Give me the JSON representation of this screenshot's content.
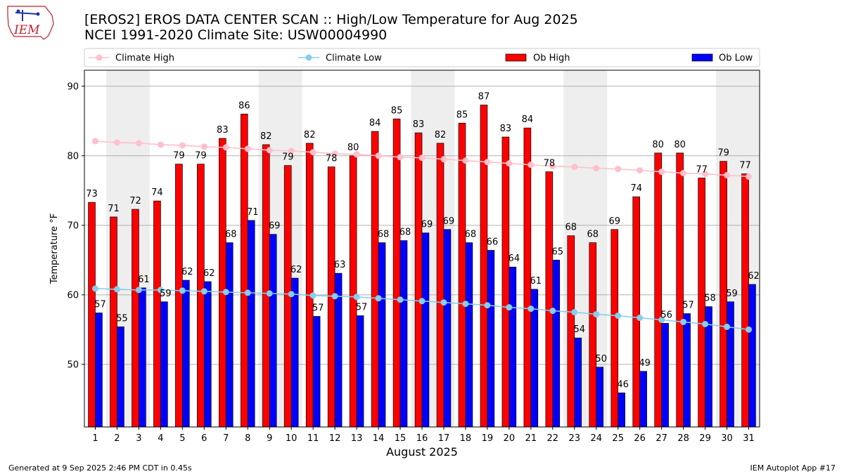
{
  "header": {
    "title_line1": "[EROS2] EROS DATA CENTER SCAN :: High/Low Temperature for Aug 2025",
    "title_line2": "NCEI 1991-2020 Climate Site: USW00004990"
  },
  "logo": {
    "text": "IEM"
  },
  "footer": {
    "left": "Generated at 9 Sep 2025 2:46 PM CDT in 0.45s",
    "right": "IEM Autoplot App #17"
  },
  "chart_data": {
    "type": "bar",
    "xlabel": "August 2025",
    "ylabel": "Temperature °F",
    "ylim": [
      41,
      92.3
    ],
    "yticks": [
      50,
      60,
      70,
      80,
      90
    ],
    "grid": true,
    "legend_position": "top",
    "categories": [
      "1",
      "2",
      "3",
      "4",
      "5",
      "6",
      "7",
      "8",
      "9",
      "10",
      "11",
      "12",
      "13",
      "14",
      "15",
      "16",
      "17",
      "18",
      "19",
      "20",
      "21",
      "22",
      "23",
      "24",
      "25",
      "26",
      "27",
      "28",
      "29",
      "30",
      "31"
    ],
    "weekend_shading_days": [
      2,
      3,
      9,
      10,
      16,
      17,
      23,
      24,
      30,
      31
    ],
    "series": [
      {
        "name": "Ob High",
        "kind": "bar",
        "color": "#ff0000",
        "values": [
          73.3,
          71.2,
          72.3,
          73.5,
          78.8,
          78.8,
          82.5,
          86.0,
          81.6,
          78.6,
          81.8,
          78.4,
          80.0,
          83.5,
          85.3,
          83.3,
          81.8,
          84.7,
          87.3,
          82.7,
          84.0,
          77.7,
          68.5,
          67.5,
          69.4,
          74.1,
          80.4,
          80.4,
          76.8,
          79.2,
          77.4
        ],
        "labels": [
          "73",
          "71",
          "72",
          "74",
          "79",
          "79",
          "83",
          "86",
          "82",
          "79",
          "82",
          "78",
          "80",
          "84",
          "85",
          "83",
          "82",
          "85",
          "87",
          "83",
          "84",
          "78",
          "68",
          "68",
          "69",
          "74",
          "80",
          "80",
          "77",
          "79",
          "77"
        ]
      },
      {
        "name": "Ob Low",
        "kind": "bar",
        "color": "#0000ff",
        "values": [
          57.4,
          55.4,
          61.0,
          59.0,
          62.1,
          61.9,
          67.5,
          70.7,
          68.7,
          62.4,
          56.9,
          63.1,
          57.0,
          67.5,
          67.8,
          68.9,
          69.4,
          67.5,
          66.4,
          64.0,
          60.8,
          65.0,
          53.8,
          49.6,
          45.9,
          49.0,
          55.9,
          57.3,
          58.3,
          59.0,
          61.5
        ],
        "labels": [
          "57",
          "55",
          "61",
          "59",
          "62",
          "62",
          "68",
          "71",
          "69",
          "62",
          "57",
          "63",
          "57",
          "68",
          "68",
          "69",
          "69",
          "68",
          "66",
          "64",
          "61",
          "65",
          "54",
          "50",
          "46",
          "49",
          "56",
          "57",
          "58",
          "59",
          "62"
        ]
      },
      {
        "name": "Climate High",
        "kind": "line",
        "color": "#ffc0cb",
        "values": [
          82.1,
          81.9,
          81.8,
          81.6,
          81.5,
          81.3,
          81.2,
          81.0,
          80.8,
          80.7,
          80.5,
          80.3,
          80.2,
          80.0,
          79.8,
          79.7,
          79.5,
          79.3,
          79.1,
          78.9,
          78.7,
          78.5,
          78.4,
          78.2,
          78.1,
          77.9,
          77.7,
          77.5,
          77.4,
          77.2,
          77.0
        ]
      },
      {
        "name": "Climate Low",
        "kind": "line",
        "color": "#87ceeb",
        "values": [
          60.9,
          60.8,
          60.7,
          60.7,
          60.6,
          60.5,
          60.4,
          60.3,
          60.2,
          60.1,
          59.9,
          59.8,
          59.7,
          59.5,
          59.3,
          59.1,
          58.9,
          58.7,
          58.5,
          58.2,
          58.0,
          57.7,
          57.5,
          57.2,
          57.0,
          56.7,
          56.4,
          56.1,
          55.8,
          55.4,
          55.0
        ]
      }
    ]
  }
}
